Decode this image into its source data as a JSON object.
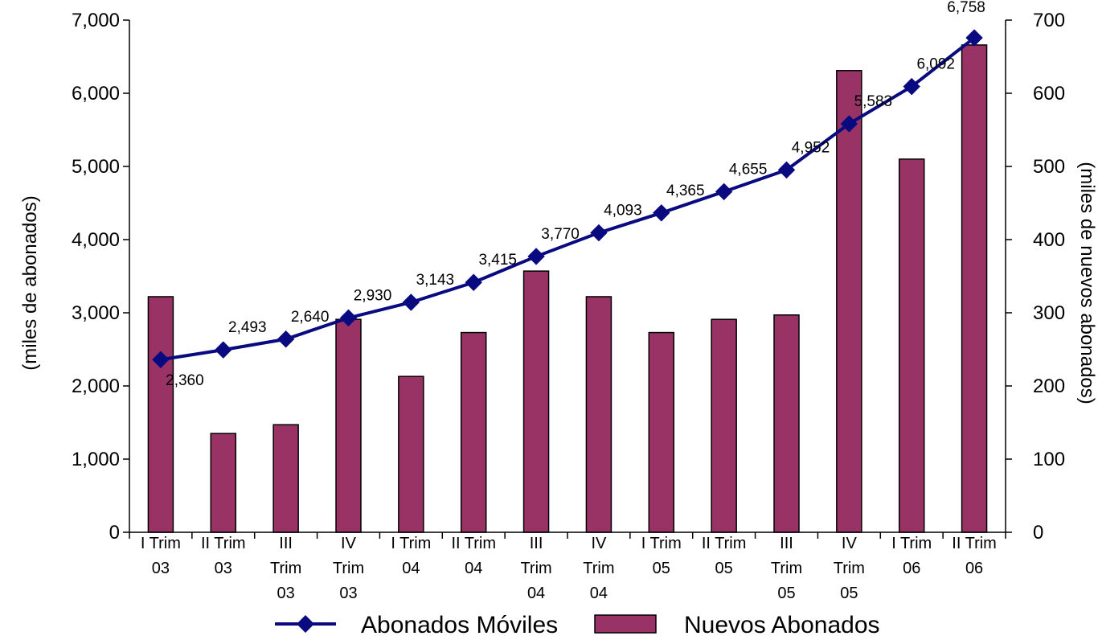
{
  "chart_data": {
    "type": "bar",
    "categories": [
      [
        "I Trim",
        "03"
      ],
      [
        "II Trim",
        "03"
      ],
      [
        "III",
        "Trim",
        "03"
      ],
      [
        "IV",
        "Trim",
        "03"
      ],
      [
        "I Trim",
        "04"
      ],
      [
        "II Trim",
        "04"
      ],
      [
        "III",
        "Trim",
        "04"
      ],
      [
        "IV",
        "Trim",
        "04"
      ],
      [
        "I Trim",
        "05"
      ],
      [
        "II Trim",
        "05"
      ],
      [
        "III",
        "Trim",
        "05"
      ],
      [
        "IV",
        "Trim",
        "05"
      ],
      [
        "I Trim",
        "06"
      ],
      [
        "II Trim",
        "06"
      ]
    ],
    "series": [
      {
        "name": "Abonados Móviles",
        "type": "line",
        "axis": "left",
        "color": "#0a0a80",
        "marker": "diamond",
        "values": [
          2360,
          2493,
          2640,
          2930,
          3143,
          3415,
          3770,
          4093,
          4365,
          4655,
          4952,
          5583,
          6092,
          6758
        ],
        "labels": [
          "2,360",
          "2,493",
          "2,640",
          "2,930",
          "3,143",
          "3,415",
          "3,770",
          "4,093",
          "4,365",
          "4,655",
          "4,952",
          "5,583",
          "6,092",
          "6,758"
        ]
      },
      {
        "name": "Nuevos Abonados",
        "type": "bar",
        "axis": "right",
        "color": "#993366",
        "values": [
          322,
          135,
          147,
          291,
          213,
          273,
          357,
          322,
          273,
          291,
          297,
          631,
          510,
          666
        ]
      }
    ],
    "y_left": {
      "label": "(miles de abonados)",
      "range": [
        0,
        7000
      ],
      "ticks": [
        0,
        1000,
        2000,
        3000,
        4000,
        5000,
        6000,
        7000
      ],
      "tick_labels": [
        "0",
        "1,000",
        "2,000",
        "3,000",
        "4,000",
        "5,000",
        "6,000",
        "7,000"
      ]
    },
    "y_right": {
      "label": "(miles de nuevos abonados)",
      "range": [
        0,
        700
      ],
      "ticks": [
        0,
        100,
        200,
        300,
        400,
        500,
        600,
        700
      ],
      "tick_labels": [
        "0",
        "100",
        "200",
        "300",
        "400",
        "500",
        "600",
        "700"
      ]
    },
    "grid": false,
    "legend_position": "bottom"
  }
}
